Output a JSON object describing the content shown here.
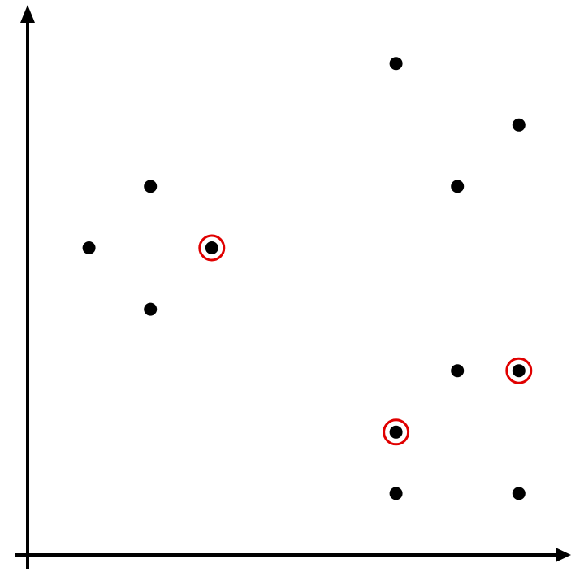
{
  "chart_data": {
    "type": "scatter",
    "title": "",
    "xlabel": "",
    "ylabel": "",
    "xlim": [
      0,
      8.5
    ],
    "ylim": [
      0,
      8.5
    ],
    "grid": false,
    "legend": "none",
    "colors": {
      "point": "#000000",
      "highlight_ring": "#e00000",
      "axis": "#000000",
      "background": "#ffffff"
    },
    "series": [
      {
        "values": [
          {
            "x": 1,
            "y": 5
          },
          {
            "x": 2,
            "y": 6
          },
          {
            "x": 2,
            "y": 4
          },
          {
            "x": 3,
            "y": 5,
            "highlighted": true
          },
          {
            "x": 6,
            "y": 8
          },
          {
            "x": 7,
            "y": 6
          },
          {
            "x": 8,
            "y": 7
          },
          {
            "x": 7,
            "y": 3
          },
          {
            "x": 8,
            "y": 3,
            "highlighted": true
          },
          {
            "x": 6,
            "y": 2,
            "highlighted": true
          },
          {
            "x": 6,
            "y": 1
          },
          {
            "x": 8,
            "y": 1
          }
        ]
      }
    ]
  }
}
